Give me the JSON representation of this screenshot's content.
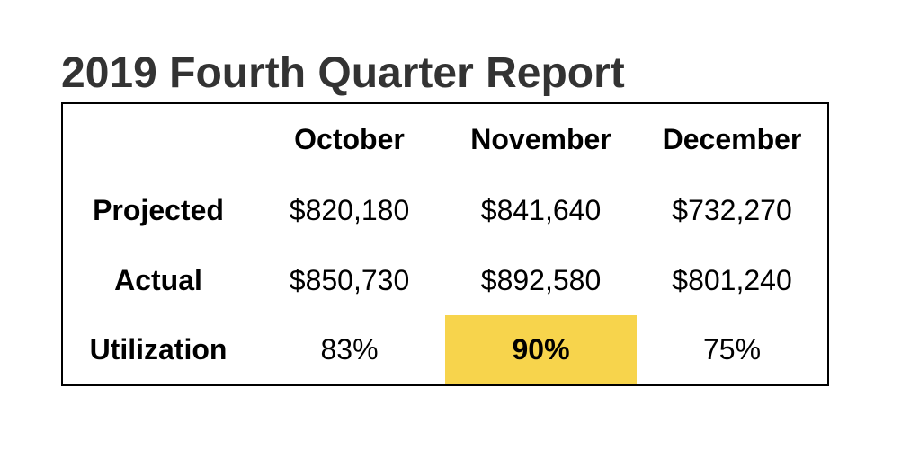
{
  "report": {
    "title": "2019 Fourth Quarter Report",
    "highlight_color": "#F7D44C"
  },
  "table": {
    "columns": [
      "October",
      "November",
      "December"
    ],
    "rows": [
      {
        "label": "Projected",
        "values": [
          "$820,180",
          "$841,640",
          "$732,270"
        ]
      },
      {
        "label": "Actual",
        "values": [
          "$850,730",
          "$892,580",
          "$801,240"
        ]
      },
      {
        "label": "Utilization",
        "values": [
          "83%",
          "90%",
          "75%"
        ],
        "highlighted_column": 1
      }
    ]
  }
}
